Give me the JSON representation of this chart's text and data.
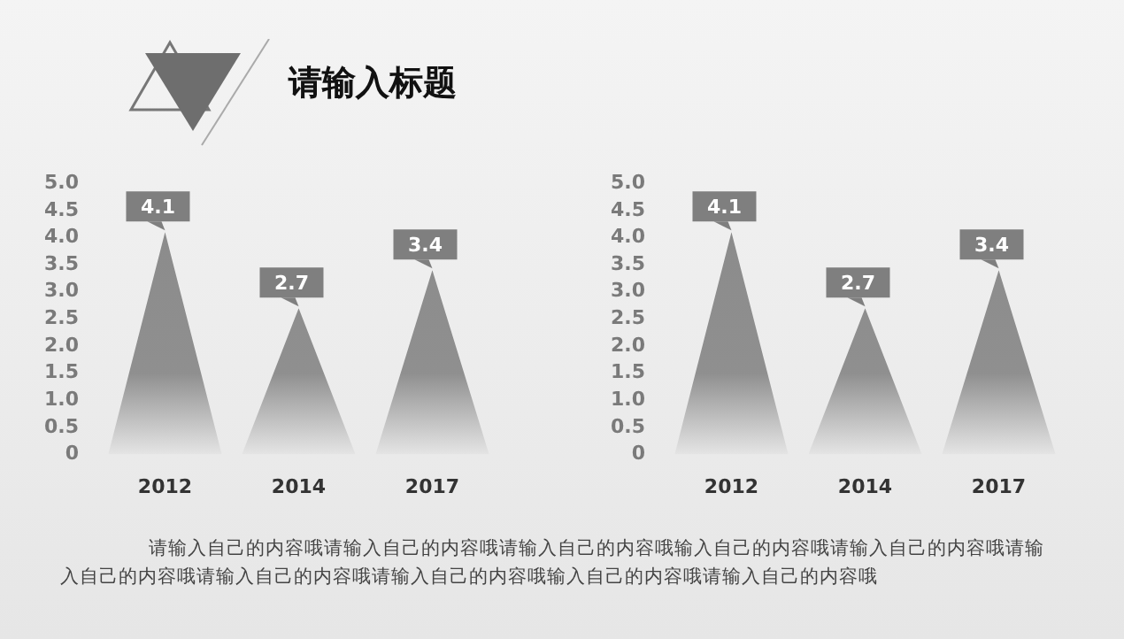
{
  "chart_data": [
    {
      "type": "bar",
      "title": "请输入标题",
      "categories": [
        "2012",
        "2014",
        "2017"
      ],
      "values": [
        4.1,
        2.7,
        3.4
      ],
      "color": "#7f7f7f",
      "ylim": [
        0,
        5
      ],
      "yticks": [
        0,
        {
          "value": 0.5,
          "label": "0.5"
        },
        {
          "value": 1,
          "label": "1.0"
        },
        {
          "value": 1.5,
          "label": "1.5"
        },
        {
          "value": 2,
          "label": "2.0"
        },
        {
          "value": 2.5,
          "label": "2.5"
        },
        {
          "value": 3,
          "label": "3.0"
        },
        {
          "value": 3.5,
          "label": "3.5"
        },
        {
          "value": 4,
          "label": "4.0"
        },
        {
          "value": 4.5,
          "label": "4.5"
        },
        {
          "value": 5,
          "label": "5.0"
        }
      ],
      "grid": false,
      "legend": false,
      "data_labels": true,
      "annotations": [
        "请输入自己的内容哦请输入自己的内容哦请输入自己的内容哦输入自己的内容哦请输入自己的内容哦请输入自己的内容哦请输入自己的内容哦请输入自己的内容哦输入自己的内容哦请输入自己的内容哦"
      ]
    },
    {
      "type": "bar",
      "categories": [
        "2012",
        "2014",
        "2017"
      ],
      "values": [
        4.1,
        2.7,
        3.4
      ],
      "color": "#7f7f7f",
      "ylim": [
        0,
        5
      ],
      "yticks": [
        0,
        {
          "value": 0.5,
          "label": "0.5"
        },
        {
          "value": 1,
          "label": "1.0"
        },
        {
          "value": 1.5,
          "label": "1.5"
        },
        {
          "value": 2,
          "label": "2.0"
        },
        {
          "value": 2.5,
          "label": "2.5"
        },
        {
          "value": 3,
          "label": "3.0"
        },
        {
          "value": 3.5,
          "label": "3.5"
        },
        {
          "value": 4,
          "label": "4.0"
        },
        {
          "value": 4.5,
          "label": "4.5"
        },
        {
          "value": 5,
          "label": "5.0"
        }
      ],
      "grid": false,
      "legend": false,
      "data_labels": true
    }
  ]
}
